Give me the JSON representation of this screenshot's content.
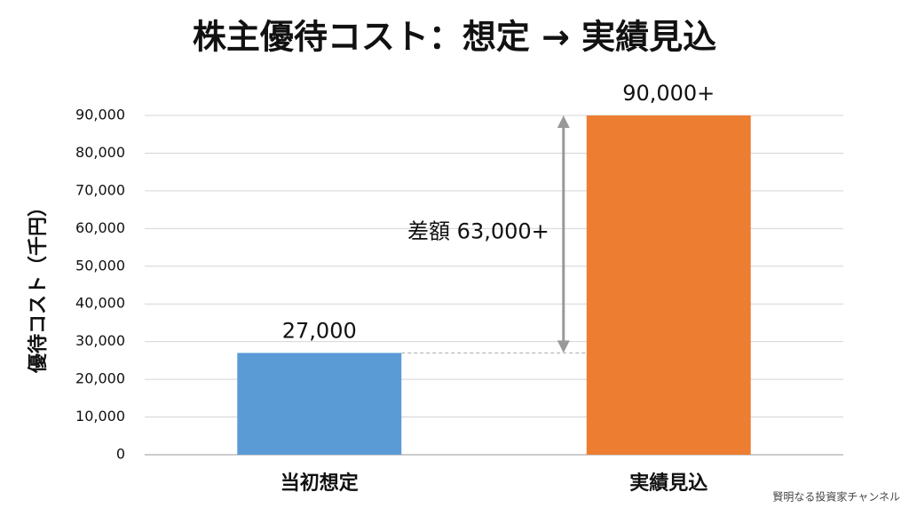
{
  "chart_data": {
    "type": "bar",
    "title": "株主優待コスト：想定 → 実績見込",
    "y_label": "優待コスト（千円）",
    "categories": [
      "当初想定",
      "実績見込"
    ],
    "values": [
      27000,
      90000
    ],
    "value_labels": [
      "27,000",
      "90,000+"
    ],
    "colors": [
      "#5b9bd5",
      "#ed7d31"
    ],
    "ylim": [
      0,
      90000
    ],
    "yticks": [
      0,
      {
        "value": 10000,
        "label": "10,000"
      },
      {
        "value": 20000,
        "label": "20,000"
      },
      {
        "value": 30000,
        "label": "30,000"
      },
      {
        "value": 40000,
        "label": "40,000"
      },
      {
        "value": 50000,
        "label": "50,000"
      },
      {
        "value": 60000,
        "label": "60,000"
      },
      {
        "value": 70000,
        "label": "70,000"
      },
      {
        "value": 80000,
        "label": "80,000"
      },
      {
        "value": 90000,
        "label": "90,000"
      }
    ],
    "grid": true,
    "annotation": "差額 63,000+",
    "watermark": "賢明なる投資家チャンネル"
  }
}
